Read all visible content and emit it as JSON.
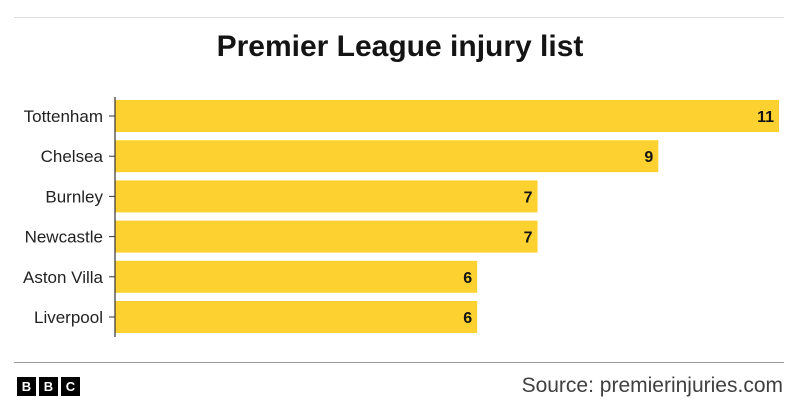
{
  "chart_data": {
    "type": "bar",
    "orientation": "horizontal",
    "title": "Premier League injury list",
    "categories": [
      "Tottenham",
      "Chelsea",
      "Burnley",
      "Newcastle",
      "Aston Villa",
      "Liverpool"
    ],
    "values": [
      11,
      9,
      7,
      7,
      6,
      6
    ],
    "xlim": [
      0,
      11
    ],
    "xlabel": "",
    "ylabel": "",
    "grid": false,
    "bar_color": "#fdd230"
  },
  "footer": {
    "logo_letters": [
      "B",
      "B",
      "C"
    ],
    "source": "Source: premierinjuries.com"
  }
}
